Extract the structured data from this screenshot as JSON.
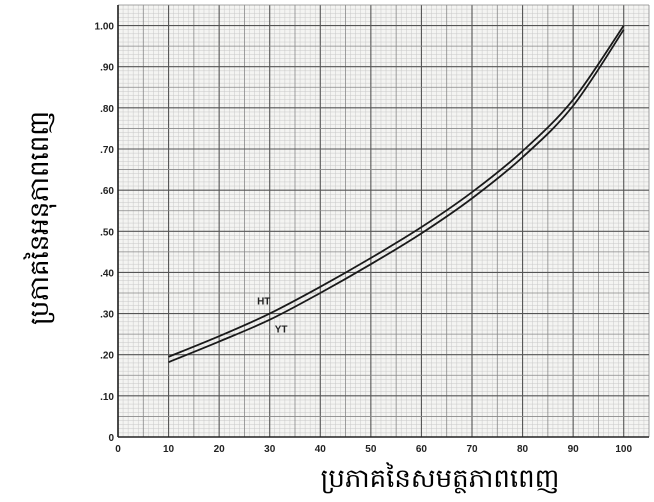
{
  "chart_data": {
    "type": "line",
    "xlabel": "ប្រភាគនៃសមត្ថភាពពេញ",
    "ylabel": "ប្រភាគនៃអនុភាពពេញ",
    "xlim": [
      0,
      105
    ],
    "ylim": [
      0,
      1.05
    ],
    "x_ticks": [
      0,
      10,
      20,
      30,
      40,
      50,
      60,
      70,
      80,
      90,
      100
    ],
    "x_tick_labels": [
      "0",
      "10",
      "20",
      "30",
      "40",
      "50",
      "60",
      "70",
      "80",
      "90",
      "100"
    ],
    "y_ticks": [
      0,
      0.1,
      0.2,
      0.3,
      0.4,
      0.5,
      0.6,
      0.7,
      0.8,
      0.9,
      1.0
    ],
    "y_tick_labels": [
      "0",
      ".10",
      ".20",
      ".30",
      ".40",
      ".50",
      ".60",
      ".70",
      ".80",
      ".90",
      "1.00"
    ],
    "grid": true,
    "legend": "none",
    "series": [
      {
        "name": "HT",
        "color": "#1a1a1a",
        "x": [
          10,
          20,
          30,
          40,
          50,
          60,
          70,
          80,
          90,
          100
        ],
        "y": [
          0.195,
          0.245,
          0.3,
          0.365,
          0.435,
          0.51,
          0.595,
          0.695,
          0.82,
          1.0
        ]
      },
      {
        "name": "YT",
        "color": "#1a1a1a",
        "x": [
          10,
          20,
          30,
          40,
          50,
          60,
          70,
          80,
          90,
          100
        ],
        "y": [
          0.182,
          0.232,
          0.285,
          0.35,
          0.42,
          0.495,
          0.58,
          0.68,
          0.805,
          0.99
        ]
      }
    ]
  }
}
